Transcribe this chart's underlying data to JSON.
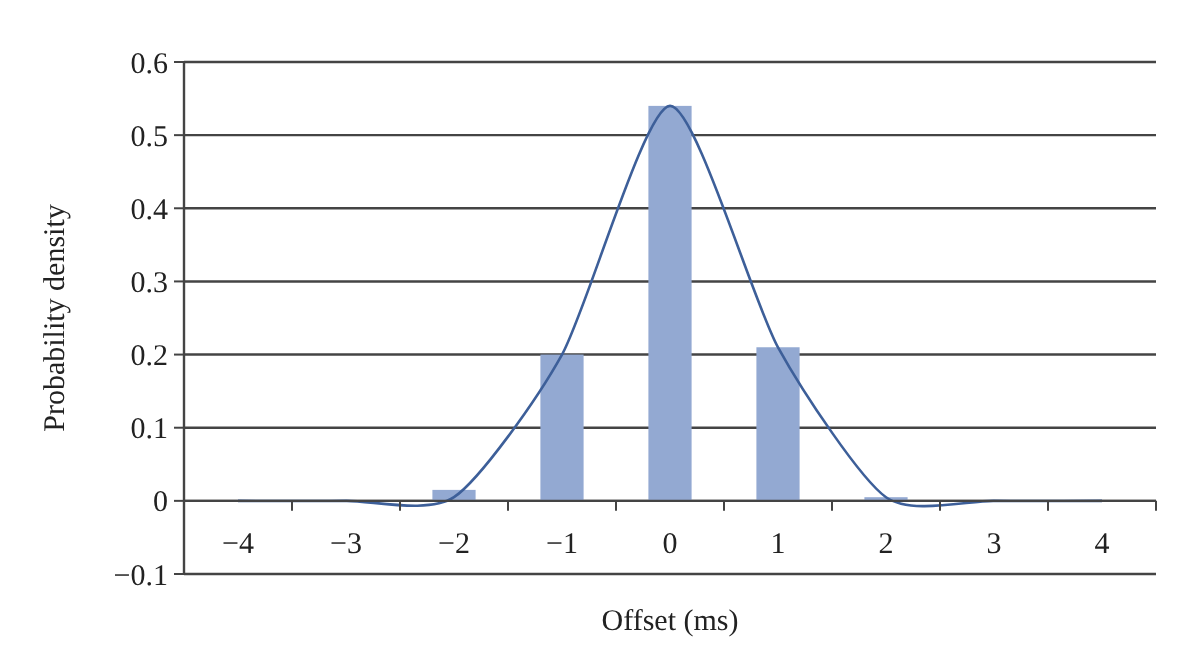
{
  "chart_data": {
    "type": "bar",
    "xlabel": "Offset (ms)",
    "ylabel": "Probability density",
    "categories": [
      "−4",
      "−3",
      "−2",
      "−1",
      "0",
      "1",
      "2",
      "3",
      "4"
    ],
    "series": [
      {
        "color": "#93a9d2",
        "values": [
          0,
          0,
          0.015,
          0.2,
          0.54,
          0.21,
          0.005,
          0,
          0
        ]
      },
      {
        "type": "line",
        "color": "#3d5f99",
        "values": [
          0,
          0,
          0.005,
          0.2,
          0.54,
          0.21,
          0.005,
          0,
          0
        ]
      }
    ],
    "ylim": [
      -0.1,
      0.6
    ],
    "yticks": [
      -0.1,
      0,
      0.1,
      0.2,
      0.3,
      0.4,
      0.5,
      0.6
    ],
    "grid": "y",
    "marker": "none",
    "line_style": "solid"
  }
}
